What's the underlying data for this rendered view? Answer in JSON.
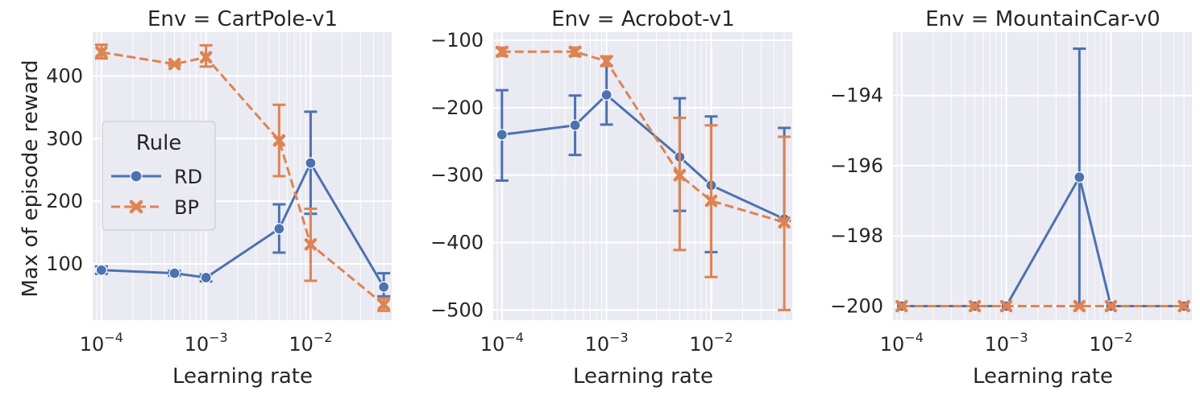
{
  "figure": {
    "ylabel": "Max of episode reward",
    "xlabel": "Learning rate"
  },
  "legend": {
    "title": "Rule",
    "entries": [
      {
        "name": "RD",
        "color": "#4c72b0",
        "marker": "circle",
        "dash": "solid"
      },
      {
        "name": "BP",
        "color": "#dd8452",
        "marker": "x",
        "dash": "dashed"
      }
    ]
  },
  "chart_data": [
    {
      "type": "line",
      "title": "Env = CartPole-v1",
      "xlabel": "Learning rate",
      "ylabel": "Max of episode reward",
      "xscale": "log",
      "x": [
        0.0001,
        0.0005,
        0.001,
        0.005,
        0.01,
        0.05
      ],
      "xlim": [
        8.25e-05,
        0.0606
      ],
      "ylim": [
        10,
        470
      ],
      "yticks": [
        100,
        200,
        300,
        400
      ],
      "xticks": [
        "10^-4",
        "10^-3",
        "10^-2"
      ],
      "grid": true,
      "legend": "center-left",
      "series": [
        {
          "name": "RD",
          "values": [
            90,
            85,
            78,
            156,
            261,
            63
          ],
          "err_low": [
            84,
            81,
            72,
            118,
            180,
            48
          ],
          "err_high": [
            96,
            89,
            83,
            195,
            343,
            85
          ]
        },
        {
          "name": "BP",
          "values": [
            438,
            419,
            430,
            297,
            131,
            35
          ],
          "err_low": [
            428,
            417,
            415,
            240,
            73,
            25
          ],
          "err_high": [
            450,
            421,
            449,
            354,
            188,
            45
          ]
        }
      ]
    },
    {
      "type": "line",
      "title": "Env = Acrobot-v1",
      "xlabel": "Learning rate",
      "ylabel": "",
      "xscale": "log",
      "x": [
        0.0001,
        0.0005,
        0.001,
        0.005,
        0.01,
        0.05
      ],
      "xlim": [
        8.25e-05,
        0.0606
      ],
      "ylim": [
        -515,
        -88
      ],
      "yticks": [
        -500,
        -400,
        -300,
        -200,
        -100
      ],
      "xticks": [
        "10^-4",
        "10^-3",
        "10^-2"
      ],
      "grid": true,
      "series": [
        {
          "name": "RD",
          "values": [
            -240,
            -226,
            -181,
            -273,
            -315,
            -365
          ],
          "err_low": [
            -308,
            -270,
            -225,
            -353,
            -414,
            -368
          ],
          "err_high": [
            -174,
            -182,
            -138,
            -186,
            -213,
            -230
          ]
        },
        {
          "name": "BP",
          "values": [
            -117,
            -117,
            -131,
            -300,
            -338,
            -370
          ],
          "err_low": [
            -123,
            -123,
            -138,
            -411,
            -451,
            -500
          ],
          "err_high": [
            -111,
            -111,
            -124,
            -215,
            -226,
            -243
          ]
        }
      ]
    },
    {
      "type": "line",
      "title": "Env = MountainCar-v0",
      "xlabel": "Learning rate",
      "ylabel": "",
      "xscale": "log",
      "x": [
        0.0001,
        0.0005,
        0.001,
        0.005,
        0.01,
        0.05
      ],
      "xlim": [
        8.25e-05,
        0.0606
      ],
      "ylim": [
        -200.4,
        -192.2
      ],
      "yticks": [
        -200,
        -198,
        -196,
        -194
      ],
      "xticks": [
        "10^-4",
        "10^-3",
        "10^-2"
      ],
      "grid": true,
      "series": [
        {
          "name": "RD",
          "values": [
            -200,
            -200,
            -200,
            -196.33,
            -200,
            -200
          ],
          "err_low": [
            -200,
            -200,
            -200,
            -200,
            -200,
            -200
          ],
          "err_high": [
            -200,
            -200,
            -200,
            -192.67,
            -200,
            -200
          ]
        },
        {
          "name": "BP",
          "values": [
            -200,
            -200,
            -200,
            -200,
            -200,
            -200
          ],
          "err_low": [
            -200,
            -200,
            -200,
            -200,
            -200,
            -200
          ],
          "err_high": [
            -200,
            -200,
            -200,
            -200,
            -200,
            -200
          ]
        }
      ]
    }
  ]
}
